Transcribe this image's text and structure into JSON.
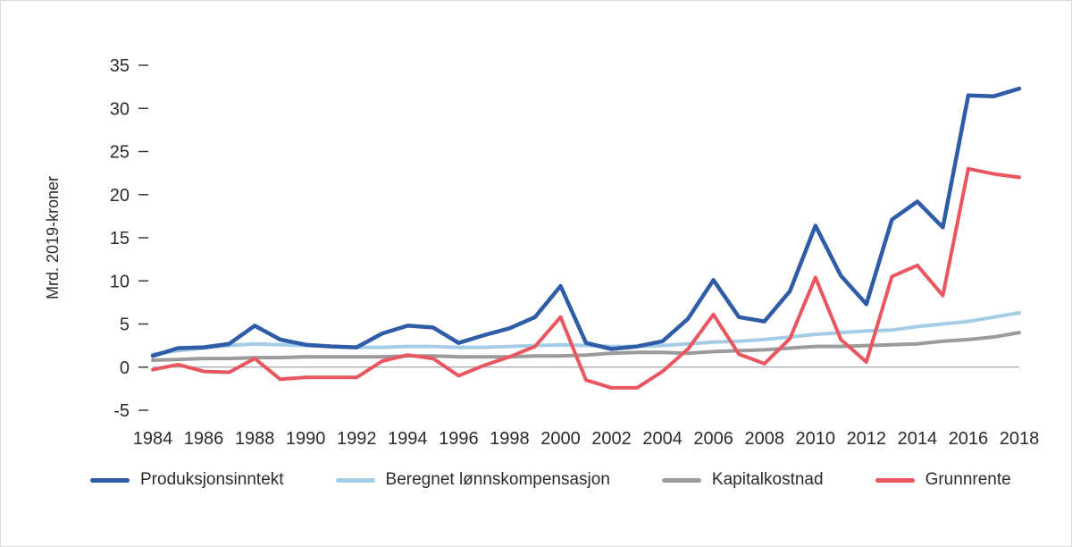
{
  "chart_data": {
    "type": "line",
    "ylabel": "Mrd. 2019-kroner",
    "ylim": [
      -5,
      35
    ],
    "ytick_step": 5,
    "x": [
      1984,
      1985,
      1986,
      1987,
      1988,
      1989,
      1990,
      1991,
      1992,
      1993,
      1994,
      1995,
      1996,
      1997,
      1998,
      1999,
      2000,
      2001,
      2002,
      2003,
      2004,
      2005,
      2006,
      2007,
      2008,
      2009,
      2010,
      2011,
      2012,
      2013,
      2014,
      2015,
      2016,
      2017,
      2018
    ],
    "x_tick_step": 2,
    "grid": "off",
    "legend_position": "bottom",
    "zero_line_color": "#8f8f8f",
    "draw_order": [
      2,
      1,
      0,
      3
    ],
    "series": [
      {
        "name": "Produksjonsinntekt",
        "color": "#2e5ca6",
        "width": 4.5,
        "values": [
          1.3,
          2.2,
          2.3,
          2.7,
          4.8,
          3.2,
          2.6,
          2.4,
          2.3,
          3.9,
          4.8,
          4.6,
          2.8,
          3.7,
          4.5,
          5.8,
          9.4,
          2.8,
          2.1,
          2.4,
          3.0,
          5.6,
          10.1,
          5.8,
          5.3,
          8.8,
          16.4,
          10.6,
          7.3,
          17.1,
          19.2,
          16.2,
          31.5,
          31.4,
          32.3
        ]
      },
      {
        "name": "Beregnet lønnskompensasjon",
        "color": "#a5cce6",
        "width": 4,
        "values": [
          1.5,
          1.9,
          2.2,
          2.5,
          2.7,
          2.6,
          2.5,
          2.4,
          2.3,
          2.3,
          2.4,
          2.4,
          2.3,
          2.3,
          2.4,
          2.5,
          2.6,
          2.5,
          2.4,
          2.4,
          2.5,
          2.7,
          2.9,
          3.0,
          3.2,
          3.5,
          3.8,
          4.0,
          4.2,
          4.3,
          4.7,
          5.0,
          5.3,
          5.8,
          6.3
        ]
      },
      {
        "name": "Kapitalkostnad",
        "color": "#9b9b9b",
        "width": 4,
        "values": [
          0.8,
          0.9,
          1.0,
          1.0,
          1.1,
          1.1,
          1.2,
          1.2,
          1.2,
          1.2,
          1.3,
          1.3,
          1.2,
          1.2,
          1.2,
          1.3,
          1.3,
          1.4,
          1.6,
          1.7,
          1.7,
          1.6,
          1.8,
          1.9,
          2.0,
          2.2,
          2.4,
          2.4,
          2.5,
          2.6,
          2.7,
          3.0,
          3.2,
          3.5,
          4.0
        ]
      },
      {
        "name": "Grunnrente",
        "color": "#e9565f",
        "width": 4,
        "values": [
          -0.3,
          0.3,
          -0.5,
          -0.6,
          1.0,
          -1.4,
          -1.2,
          -1.2,
          -1.2,
          0.7,
          1.4,
          1.0,
          -1.0,
          0.2,
          1.2,
          2.4,
          5.8,
          -1.5,
          -2.4,
          -2.4,
          -0.5,
          2.1,
          6.1,
          1.5,
          0.4,
          3.3,
          10.4,
          3.2,
          0.6,
          10.5,
          11.8,
          8.3,
          23.0,
          22.4,
          22.0
        ]
      }
    ]
  }
}
